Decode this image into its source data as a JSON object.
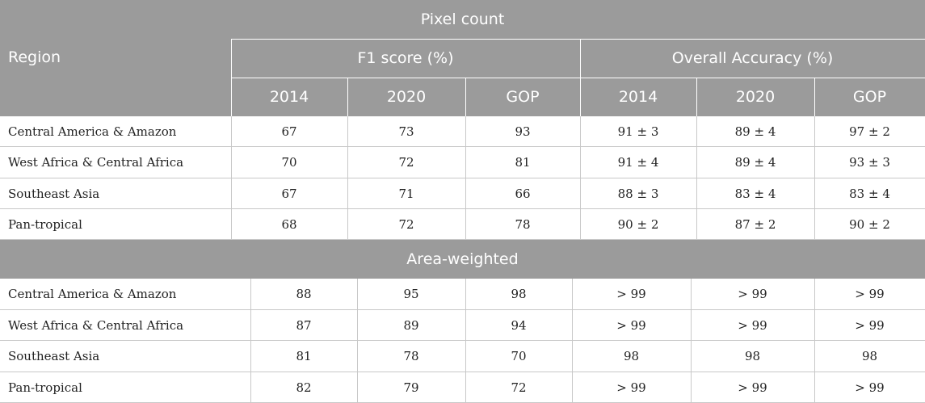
{
  "section1": {
    "title": "Pixel count",
    "region_label": "Region",
    "f1_label": "F1 score (%)",
    "oa_label": "Overall Accuracy (%)",
    "subcols": [
      "2014",
      "2020",
      "GOP",
      "2014",
      "2020",
      "GOP"
    ],
    "rows": [
      {
        "region": "Central America & Amazon",
        "vals": [
          "67",
          "73",
          "93",
          "91 ± 3",
          "89 ± 4",
          "97 ± 2"
        ]
      },
      {
        "region": "West Africa & Central Africa",
        "vals": [
          "70",
          "72",
          "81",
          "91 ± 4",
          "89 ± 4",
          "93 ± 3"
        ]
      },
      {
        "region": "Southeast Asia",
        "vals": [
          "67",
          "71",
          "66",
          "88 ± 3",
          "83 ± 4",
          "83 ± 4"
        ]
      },
      {
        "region": "Pan-tropical",
        "vals": [
          "68",
          "72",
          "78",
          "90 ± 2",
          "87 ± 2",
          "90 ± 2"
        ]
      }
    ]
  },
  "section2": {
    "title": "Area-weighted",
    "rows": [
      {
        "region": "Central America & Amazon",
        "vals": [
          "88",
          "95",
          "98",
          "> 99",
          "> 99",
          "> 99"
        ]
      },
      {
        "region": "West Africa & Central Africa",
        "vals": [
          "87",
          "89",
          "94",
          "> 99",
          "> 99",
          "> 99"
        ]
      },
      {
        "region": "Southeast Asia",
        "vals": [
          "81",
          "78",
          "70",
          "98",
          "98",
          "98"
        ]
      },
      {
        "region": "Pan-tropical",
        "vals": [
          "82",
          "79",
          "72",
          "> 99",
          "> 99",
          "> 99"
        ]
      }
    ]
  }
}
